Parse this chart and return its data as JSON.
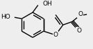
{
  "bg_color": "#eeeeee",
  "bond_color": "#000000",
  "bond_lw": 1.0,
  "fs_label": 6.5,
  "fig_w": 1.34,
  "fig_h": 0.71,
  "dpi": 100,
  "xlim": [
    0,
    134
  ],
  "ylim": [
    0,
    71
  ]
}
